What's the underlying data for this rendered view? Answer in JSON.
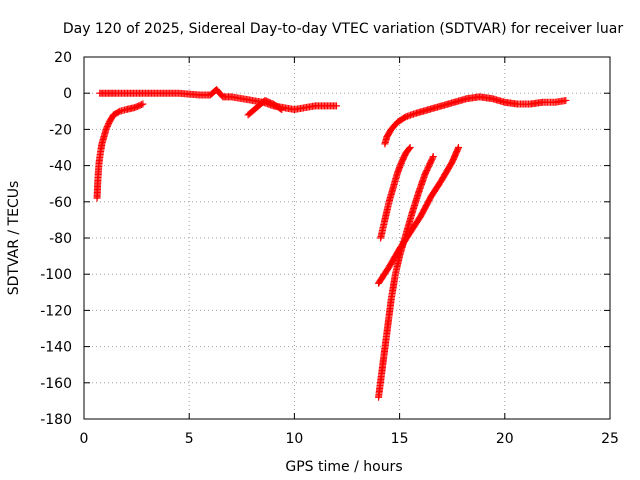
{
  "chart_data": {
    "type": "scatter",
    "title": "Day 120 of 2025, Sidereal Day-to-day VTEC variation (SDTVAR) for receiver luar",
    "xlabel": "GPS time / hours",
    "ylabel": "SDTVAR / TECUs",
    "xlim": [
      0,
      25
    ],
    "ylim": [
      -180,
      20
    ],
    "xticks": [
      0,
      5,
      10,
      15,
      20,
      25
    ],
    "yticks": [
      -180,
      -160,
      -140,
      -120,
      -100,
      -80,
      -60,
      -40,
      -20,
      0,
      20
    ],
    "grid": true,
    "marker": "plus",
    "colors": {
      "series": "#ff0000",
      "grid": "#a0a0a0",
      "axes": "#000000"
    },
    "series": [
      {
        "color": "#ff0000",
        "segments": [
          [
            [
              0.62,
              -58
            ],
            [
              0.65,
              -50
            ],
            [
              0.68,
              -44
            ],
            [
              0.72,
              -38
            ],
            [
              0.78,
              -33
            ],
            [
              0.85,
              -28
            ],
            [
              0.95,
              -24
            ],
            [
              1.05,
              -20
            ],
            [
              1.2,
              -16
            ],
            [
              1.4,
              -12
            ],
            [
              1.7,
              -10
            ],
            [
              2.0,
              -9
            ],
            [
              2.4,
              -8
            ],
            [
              2.8,
              -6
            ]
          ],
          [
            [
              0.75,
              0
            ],
            [
              1.5,
              0
            ],
            [
              2.5,
              0
            ],
            [
              3.5,
              0
            ],
            [
              4.5,
              0
            ],
            [
              5.5,
              -1
            ],
            [
              6.0,
              -1
            ],
            [
              6.3,
              2
            ],
            [
              6.6,
              -2
            ],
            [
              7.0,
              -2
            ],
            [
              7.5,
              -3
            ],
            [
              8.0,
              -4
            ],
            [
              8.5,
              -5
            ],
            [
              9.0,
              -7
            ],
            [
              9.5,
              -8
            ],
            [
              10.0,
              -9
            ],
            [
              10.5,
              -8
            ],
            [
              11.0,
              -7
            ],
            [
              11.5,
              -7
            ],
            [
              12.0,
              -7
            ]
          ],
          [
            [
              7.8,
              -12
            ],
            [
              8.2,
              -8
            ],
            [
              8.6,
              -4
            ],
            [
              9.0,
              -6
            ],
            [
              9.4,
              -9
            ]
          ],
          [
            [
              14.3,
              -28
            ],
            [
              14.4,
              -24
            ],
            [
              14.6,
              -20
            ],
            [
              14.9,
              -16
            ],
            [
              15.3,
              -13
            ],
            [
              15.8,
              -11
            ],
            [
              16.4,
              -9
            ],
            [
              17.0,
              -7
            ],
            [
              17.6,
              -5
            ],
            [
              18.2,
              -3
            ],
            [
              18.8,
              -2
            ],
            [
              19.4,
              -3
            ],
            [
              20.0,
              -5
            ],
            [
              20.6,
              -6
            ],
            [
              21.2,
              -6
            ],
            [
              21.8,
              -5
            ],
            [
              22.4,
              -5
            ],
            [
              22.9,
              -4
            ]
          ],
          [
            [
              14.1,
              -80
            ],
            [
              14.3,
              -70
            ],
            [
              14.5,
              -60
            ],
            [
              14.7,
              -52
            ],
            [
              14.9,
              -44
            ],
            [
              15.1,
              -38
            ],
            [
              15.3,
              -33
            ],
            [
              15.5,
              -30
            ]
          ],
          [
            [
              14.0,
              -168
            ],
            [
              14.2,
              -150
            ],
            [
              14.4,
              -132
            ],
            [
              14.6,
              -114
            ],
            [
              14.8,
              -100
            ],
            [
              15.0,
              -90
            ],
            [
              15.3,
              -78
            ],
            [
              15.6,
              -66
            ],
            [
              15.9,
              -55
            ],
            [
              16.2,
              -45
            ],
            [
              16.6,
              -35
            ]
          ],
          [
            [
              14.0,
              -105
            ],
            [
              14.5,
              -96
            ],
            [
              15.0,
              -86
            ],
            [
              15.5,
              -77
            ],
            [
              16.0,
              -68
            ],
            [
              16.5,
              -57
            ],
            [
              17.0,
              -48
            ],
            [
              17.5,
              -38
            ],
            [
              17.8,
              -30
            ]
          ]
        ]
      }
    ]
  }
}
